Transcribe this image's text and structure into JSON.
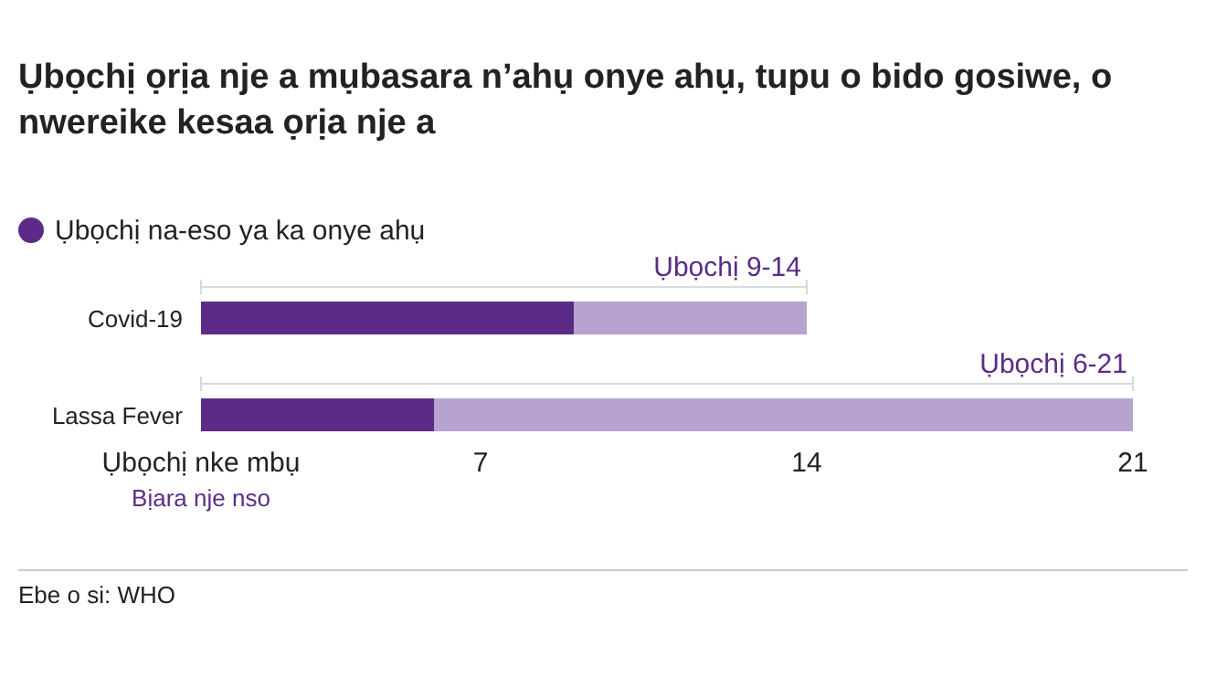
{
  "chart_data": {
    "type": "bar",
    "orientation": "horizontal",
    "title": "Ụbọchị ọrịa nje a mụbasara n’ahụ onye ahụ, tupu o bido gosiwe, o nwereike kesaa ọrịa nje a",
    "categories": [
      "Covid-19",
      "Lassa Fever"
    ],
    "series": [
      {
        "name": "Ụbọchị na-eso ya ka onye ahụ",
        "color": "#5c2b87",
        "base": [
          1,
          1
        ],
        "values": [
          8,
          5
        ]
      },
      {
        "color": "#b7a2d0",
        "base": [
          9,
          6
        ],
        "values": [
          5,
          15
        ]
      }
    ],
    "xlim": [
      1,
      21
    ],
    "xticks": [
      {
        "value": 1,
        "label": "Ụbọchị nke mbụ"
      },
      7,
      14,
      21
    ],
    "legend": "top left",
    "grid": false,
    "annotations": [
      "Ụbọchị 9-14",
      "Ụbọchị 6-21",
      "Bịara nje nso",
      "Ebe o si: WHO"
    ]
  }
}
